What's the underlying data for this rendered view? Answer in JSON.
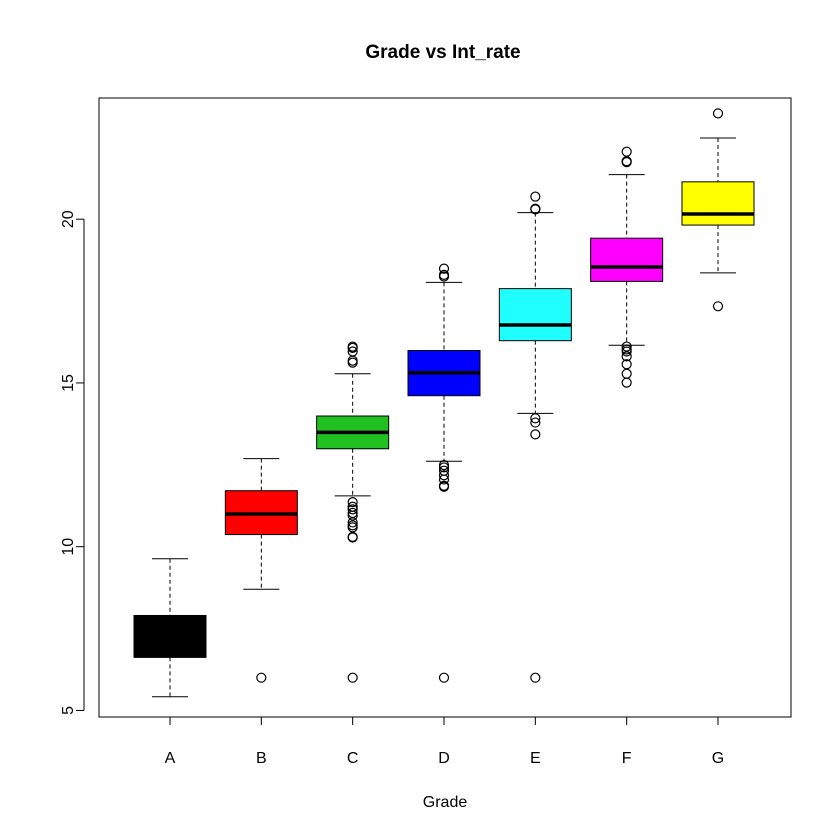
{
  "chart_data": {
    "type": "boxplot",
    "title": "Grade vs Int_rate",
    "xlabel": "Grade",
    "ylabel": "",
    "ylim": [
      4.8,
      23.7
    ],
    "yticks": [
      5,
      10,
      15,
      20
    ],
    "grid": false,
    "legend": "none",
    "categories": [
      "A",
      "B",
      "C",
      "D",
      "E",
      "F",
      "G"
    ],
    "boxes": [
      {
        "category": "A",
        "color": "#000000",
        "min": 5.42,
        "q1": 6.62,
        "median": 7.3,
        "q3": 7.9,
        "max": 9.63,
        "outliers": []
      },
      {
        "category": "B",
        "color": "#ff0000",
        "min": 8.7,
        "q1": 10.37,
        "median": 11.0,
        "q3": 11.71,
        "max": 12.69,
        "outliers": [
          6.0
        ]
      },
      {
        "category": "C",
        "color": "#1fc01f",
        "min": 11.55,
        "q1": 12.99,
        "median": 13.49,
        "q3": 13.99,
        "max": 15.28,
        "outliers": [
          6.0,
          10.28,
          10.3,
          10.59,
          10.65,
          10.74,
          10.95,
          11.03,
          11.14,
          11.22,
          11.36,
          15.62,
          15.68,
          15.96,
          16.07,
          16.11
        ]
      },
      {
        "category": "D",
        "color": "#0000ff",
        "min": 12.61,
        "q1": 14.61,
        "median": 15.31,
        "q3": 15.99,
        "max": 18.07,
        "outliers": [
          6.0,
          11.83,
          11.86,
          12.05,
          12.18,
          12.32,
          12.42,
          12.49,
          18.25,
          18.3,
          18.49
        ]
      },
      {
        "category": "E",
        "color": "#1fffff",
        "min": 14.07,
        "q1": 16.29,
        "median": 16.77,
        "q3": 17.88,
        "max": 20.2,
        "outliers": [
          6.0,
          13.43,
          13.79,
          13.92,
          20.3,
          20.32,
          20.69
        ]
      },
      {
        "category": "F",
        "color": "#ff00ff",
        "min": 16.15,
        "q1": 18.1,
        "median": 18.54,
        "q3": 19.42,
        "max": 21.36,
        "outliers": [
          15.01,
          15.28,
          15.57,
          15.81,
          15.96,
          16.02,
          16.11,
          21.74,
          21.77,
          22.06
        ]
      },
      {
        "category": "G",
        "color": "#ffff00",
        "min": 18.36,
        "q1": 19.82,
        "median": 20.16,
        "q3": 21.14,
        "max": 22.48,
        "outliers": [
          17.34,
          23.23
        ]
      }
    ]
  }
}
